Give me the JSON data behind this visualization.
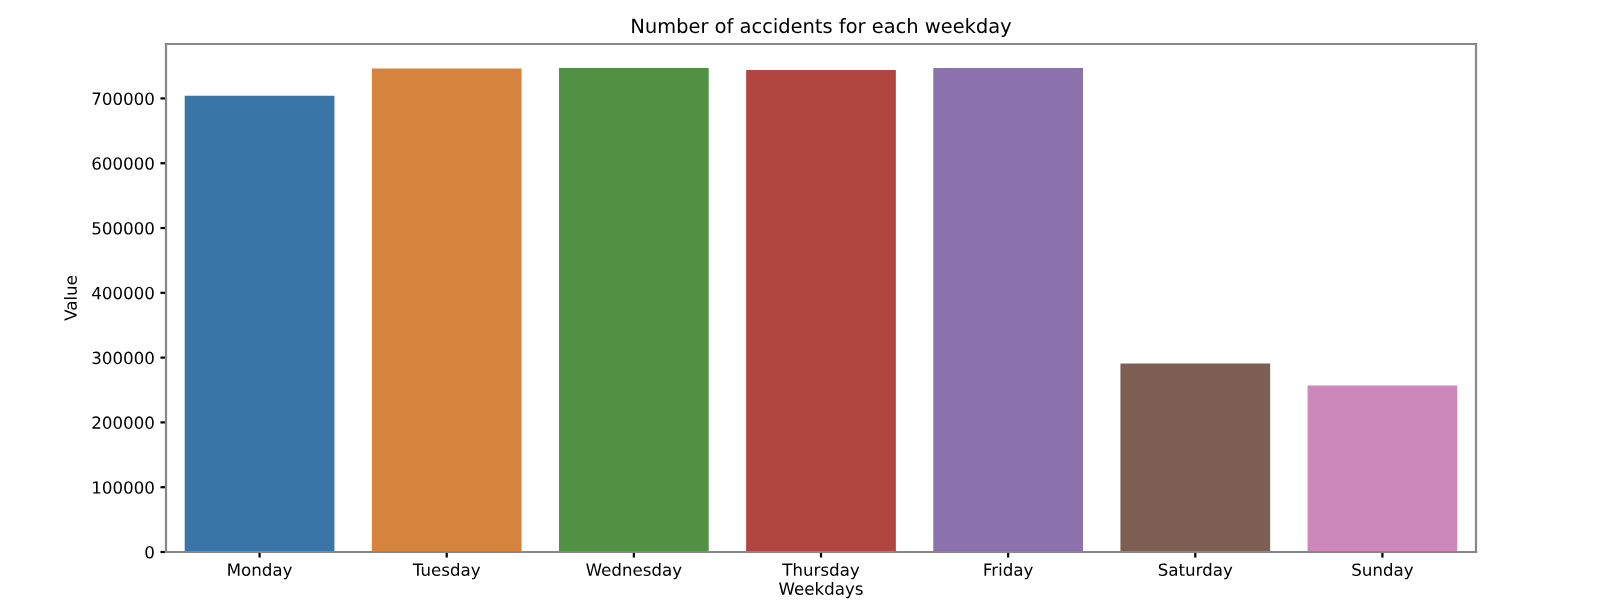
{
  "chart_data": {
    "type": "bar",
    "title": "Number of accidents for each weekday",
    "xlabel": "Weekdays",
    "ylabel": "Value",
    "categories": [
      "Monday",
      "Tuesday",
      "Wednesday",
      "Thursday",
      "Friday",
      "Saturday",
      "Sunday"
    ],
    "values": [
      704000,
      746000,
      747000,
      744000,
      747000,
      291000,
      257000
    ],
    "colors": [
      "#3a75a7",
      "#d6843d",
      "#519143",
      "#b0463f",
      "#8b72ad",
      "#7d5e53",
      "#cc88ba"
    ],
    "ylim": [
      0,
      784000
    ],
    "yticks": [
      0,
      100000,
      200000,
      300000,
      400000,
      500000,
      600000,
      700000
    ],
    "grid": false
  }
}
